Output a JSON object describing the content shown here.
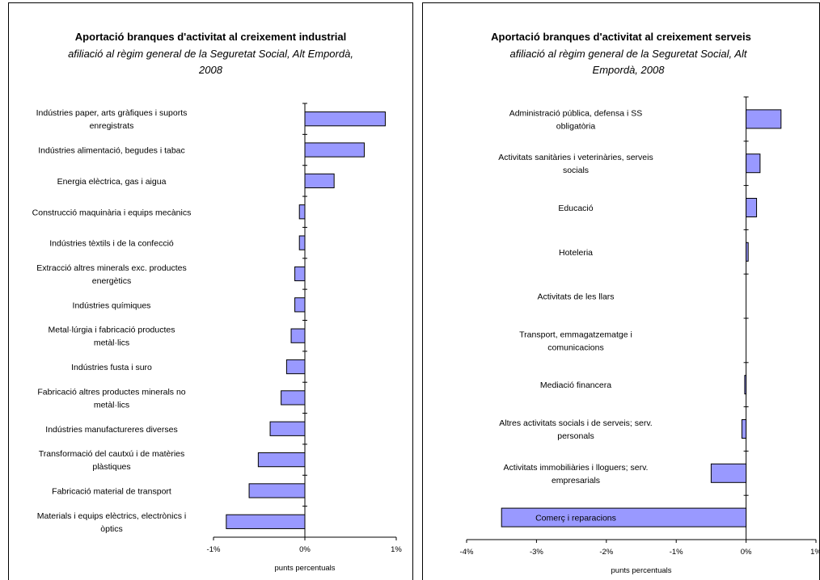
{
  "chart_data": [
    {
      "type": "bar",
      "orientation": "horizontal",
      "title": "Aportació branques d'activitat al creixement industrial",
      "subtitle": "afiliació al règim general de la Seguretat Social, Alt Empordà, 2008",
      "xlabel": "punts percentuals",
      "xlim": [
        -1,
        1
      ],
      "xticks": [
        "-1%",
        "0%",
        "1%"
      ],
      "grid": false,
      "bar_color": "#9999ff",
      "categories": [
        "Indústries paper, arts gràfiques i suports enregistrats",
        "Indústries alimentació, begudes i tabac",
        "Energia elèctrica, gas i aigua",
        "Construcció maquinària i equips mecànics",
        "Indústries tèxtils i de la confecció",
        "Extracció altres minerals exc. productes energètics",
        "Indústries químiques",
        "Metal·lúrgia i fabricació productes metàl·lics",
        "Indústries fusta i suro",
        "Fabricació altres productes minerals no metàl·lics",
        "Indústries manufactureres diverses",
        "Transformació del cautxú i de matèries plàstiques",
        "Fabricació material de transport",
        "Materials i equips elèctrics, electrònics i òptics"
      ],
      "label_lines": [
        [
          "Indústries paper, arts gràfiques i suports",
          "enregistrats"
        ],
        [
          "Indústries alimentació, begudes i tabac"
        ],
        [
          "Energia elèctrica, gas i aigua"
        ],
        [
          "Construcció maquinària i equips mecànics"
        ],
        [
          "Indústries tèxtils i de la confecció"
        ],
        [
          "Extracció altres minerals exc. productes",
          "energètics"
        ],
        [
          "Indústries químiques"
        ],
        [
          "Metal·lúrgia i fabricació productes",
          "metàl·lics"
        ],
        [
          "Indústries fusta i suro"
        ],
        [
          "Fabricació altres productes minerals no",
          "metàl·lics"
        ],
        [
          "Indústries manufactureres diverses"
        ],
        [
          "Transformació del cautxú i de matèries",
          "plàstiques"
        ],
        [
          "Fabricació material de transport"
        ],
        [
          "Materials i equips elèctrics, electrònics i",
          "òptics"
        ]
      ],
      "values": [
        0.88,
        0.65,
        0.32,
        -0.06,
        -0.06,
        -0.11,
        -0.11,
        -0.15,
        -0.2,
        -0.26,
        -0.38,
        -0.51,
        -0.61,
        -0.86
      ]
    },
    {
      "type": "bar",
      "orientation": "horizontal",
      "title": "Aportació branques d'activitat al creixement serveis",
      "subtitle": "afiliació al règim general de la Seguretat Social, Alt Empordà, 2008",
      "xlabel": "punts percentuals",
      "xlim": [
        -4,
        1
      ],
      "xticks": [
        "-4%",
        "-3%",
        "-2%",
        "-1%",
        "0%",
        "1%"
      ],
      "grid": false,
      "bar_color": "#9999ff",
      "categories": [
        "Administració pública, defensa i SS obligatòria",
        "Activitats sanitàries i veterinàries, serveis socials",
        "Educació",
        "Hoteleria",
        "Activitats de les llars",
        "Transport, emmagatzematge i comunicacions",
        "Mediació financera",
        "Altres activitats socials i de serveis; serv. personals",
        "Activitats immobiliàries i lloguers; serv. empresarials",
        "Comerç i reparacions"
      ],
      "label_lines": [
        [
          "Administració pública, defensa i SS",
          "obligatòria"
        ],
        [
          "Activitats sanitàries i veterinàries, serveis",
          "socials"
        ],
        [
          "Educació"
        ],
        [
          "Hoteleria"
        ],
        [
          "Activitats de les llars"
        ],
        [
          "Transport, emmagatzematge i",
          "comunicacions"
        ],
        [
          "Mediació financera"
        ],
        [
          "Altres activitats socials i de serveis; serv.",
          "personals"
        ],
        [
          "Activitats immobiliàries i lloguers; serv.",
          "empresarials"
        ],
        [
          "Comerç i reparacions"
        ]
      ],
      "values": [
        0.5,
        0.2,
        0.15,
        0.03,
        0.0,
        0.0,
        -0.02,
        -0.06,
        -0.5,
        -3.5
      ]
    }
  ]
}
